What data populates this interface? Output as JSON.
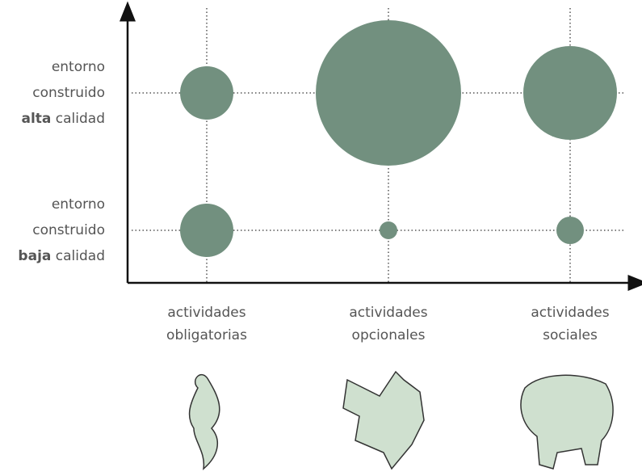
{
  "chart_data": {
    "type": "bubble",
    "categories": [
      [
        "actividades",
        "obligatorias"
      ],
      [
        "actividades",
        "opcionales"
      ],
      [
        "actividades",
        "sociales"
      ]
    ],
    "rows": [
      {
        "lines": [
          "entorno",
          "construido"
        ],
        "bold": "alta",
        "rest": " calidad",
        "sizes": [
          66,
          180,
          116
        ]
      },
      {
        "lines": [
          "entorno",
          "construido"
        ],
        "bold": "baja",
        "rest": " calidad",
        "sizes": [
          66,
          22,
          34
        ]
      }
    ],
    "color": "#72907f"
  }
}
